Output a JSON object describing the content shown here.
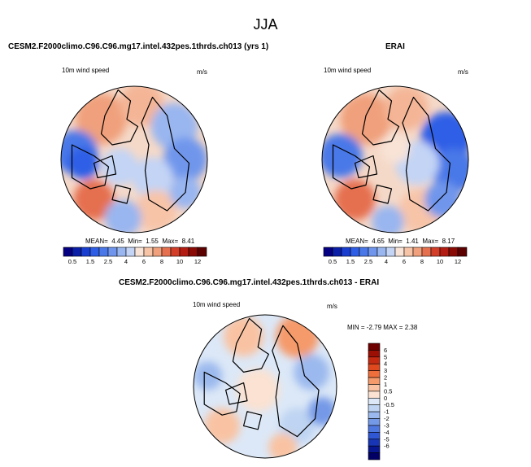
{
  "figure": {
    "title": "JJA"
  },
  "panels": {
    "model": {
      "title": "CESM2.F2000climo.C96.C96.mg17.intel.432pes.1thrds.ch013 (yrs 1)",
      "variable": "10m wind speed",
      "units": "m/s",
      "stats": {
        "mean_label": "MEAN=",
        "mean": "4.45",
        "min_label": "Min=",
        "min": "1.55",
        "max_label": "Max=",
        "max": "8.41"
      }
    },
    "obs": {
      "title": "ERAI",
      "variable": "10m wind speed",
      "units": "m/s",
      "stats": {
        "mean_label": "MEAN=",
        "mean": "4.65",
        "min_label": "Min=",
        "min": "1.41",
        "max_label": "Max=",
        "max": "8.17"
      }
    },
    "diff": {
      "title": "CESM2.F2000climo.C96.C96.mg17.intel.432pes.1thrds.ch013 - ERAI",
      "variable": "10m wind speed",
      "units": "m/s",
      "stats_text": "MIN = -2.79 MAX = 2.38"
    }
  },
  "chart_data": [
    {
      "type": "heatmap",
      "projection": "north-polar-stereographic",
      "title": "CESM2.F2000climo.C96.C96.mg17.intel.432pes.1thrds.ch013 (yrs 1)",
      "variable": "10m wind speed",
      "units": "m/s",
      "mean": 4.45,
      "min": 1.55,
      "max": 8.41,
      "colorbar_levels": [
        "0.5",
        "1",
        "1.5",
        "2",
        "2.5",
        "3",
        "4",
        "5",
        "6",
        "7",
        "8",
        "9",
        "10",
        "11",
        "12"
      ],
      "colorbar_labels": [
        "0.5",
        "1.5",
        "2.5",
        "4",
        "6",
        "8",
        "10",
        "12"
      ],
      "colorbar_colors": [
        "#050082",
        "#0a1ea8",
        "#1a3fd0",
        "#2f5ee6",
        "#4a78e8",
        "#6f96ec",
        "#99b6f0",
        "#c3d4f5",
        "#f8e3d6",
        "#f7c4a8",
        "#f0a07c",
        "#e5704f",
        "#d23e28",
        "#b31c12",
        "#8a0a05",
        "#5c0000"
      ]
    },
    {
      "type": "heatmap",
      "projection": "north-polar-stereographic",
      "title": "ERAI",
      "variable": "10m wind speed",
      "units": "m/s",
      "mean": 4.65,
      "min": 1.41,
      "max": 8.17,
      "colorbar_levels": [
        "0.5",
        "1",
        "1.5",
        "2",
        "2.5",
        "3",
        "4",
        "5",
        "6",
        "7",
        "8",
        "9",
        "10",
        "11",
        "12"
      ],
      "colorbar_labels": [
        "0.5",
        "1.5",
        "2.5",
        "4",
        "6",
        "8",
        "10",
        "12"
      ],
      "colorbar_colors": [
        "#050082",
        "#0a1ea8",
        "#1a3fd0",
        "#2f5ee6",
        "#4a78e8",
        "#6f96ec",
        "#99b6f0",
        "#c3d4f5",
        "#f8e3d6",
        "#f7c4a8",
        "#f0a07c",
        "#e5704f",
        "#d23e28",
        "#b31c12",
        "#8a0a05",
        "#5c0000"
      ]
    },
    {
      "type": "heatmap",
      "projection": "north-polar-stereographic",
      "title": "CESM2.F2000climo.C96.C96.mg17.intel.432pes.1thrds.ch013 - ERAI",
      "variable": "10m wind speed",
      "units": "m/s",
      "min": -2.79,
      "max": 2.38,
      "colorbar_labels": [
        "6",
        "5",
        "4",
        "3",
        "2",
        "1",
        "0.5",
        "0",
        "-0.5",
        "-1",
        "-2",
        "-3",
        "-4",
        "-5",
        "-6"
      ],
      "colorbar_colors": [
        "#6e0000",
        "#9c0f05",
        "#c42a12",
        "#e0481e",
        "#ef6f3c",
        "#f59a6a",
        "#f9c3a3",
        "#fbe2d2",
        "#dce8f7",
        "#bed4f2",
        "#9bb9ee",
        "#7499e7",
        "#4f77e0",
        "#2f56d3",
        "#1735b5",
        "#08178f",
        "#020064"
      ]
    }
  ]
}
